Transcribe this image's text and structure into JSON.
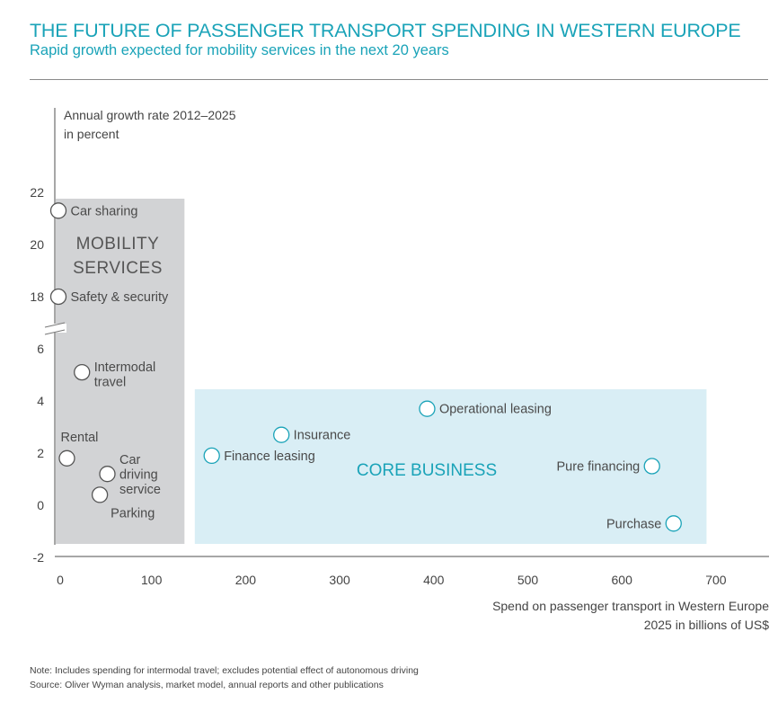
{
  "header": {
    "title": "THE FUTURE OF PASSENGER TRANSPORT SPENDING IN WESTERN EUROPE",
    "subtitle": "Rapid growth expected for mobility services in the next 20 years"
  },
  "footer": {
    "note": "Note: Includes spending for intermodal travel; excludes potential effect of autonomous driving",
    "source": "Source: Oliver Wyman analysis, market model, annual reports and other publications"
  },
  "colors": {
    "accent": "#1aa3b8",
    "mobility_region": "#d2d3d5",
    "core_region": "#d9eef5",
    "axis": "#8a8a8a",
    "text": "#4a4a4a"
  },
  "chart_data": {
    "type": "scatter",
    "title": "THE FUTURE OF PASSENGER TRANSPORT SPENDING IN WESTERN EUROPE",
    "subtitle": "Rapid growth expected for mobility services in the next 20 years",
    "ylabel_lines": [
      "Annual growth rate 2012–2025",
      "in percent"
    ],
    "xlabel_lines": [
      "Spend on passenger transport in Western Europe",
      "2025 in billions of US$"
    ],
    "xlim": [
      0,
      750
    ],
    "x_ticks": [
      0,
      100,
      200,
      300,
      400,
      500,
      600,
      700
    ],
    "y_ticks_lower": [
      -2,
      0,
      2,
      4,
      6
    ],
    "y_ticks_upper": [
      18,
      20,
      22
    ],
    "y_axis_break": "between 6 and 18",
    "grid": false,
    "regions": [
      {
        "name": "MOBILITY SERVICES",
        "label_lines": [
          "MOBILITY",
          "SERVICES"
        ],
        "x_range": [
          0,
          135
        ],
        "y_range": [
          -1.5,
          21.8
        ]
      },
      {
        "name": "CORE BUSINESS",
        "label_lines": [
          "CORE BUSINESS"
        ],
        "x_range": [
          145,
          690
        ],
        "y_range": [
          -1.5,
          4.4
        ]
      }
    ],
    "points": [
      {
        "label_lines": [
          "Car sharing"
        ],
        "x": 0,
        "y": 21.3,
        "group": "mobility",
        "label_pos": "right"
      },
      {
        "label_lines": [
          "Safety & security"
        ],
        "x": 0,
        "y": 18.0,
        "group": "mobility",
        "label_pos": "right"
      },
      {
        "label_lines": [
          "Intermodal",
          "travel"
        ],
        "x": 26,
        "y": 5.1,
        "group": "mobility",
        "label_pos": "right"
      },
      {
        "label_lines": [
          "Rental"
        ],
        "x": 10,
        "y": 1.8,
        "group": "mobility",
        "label_pos": "above"
      },
      {
        "label_lines": [
          "Car",
          "driving",
          "service"
        ],
        "x": 53,
        "y": 1.2,
        "group": "mobility",
        "label_pos": "right"
      },
      {
        "label_lines": [
          "Parking"
        ],
        "x": 45,
        "y": 0.4,
        "group": "mobility",
        "label_pos": "below-right"
      },
      {
        "label_lines": [
          "Finance leasing"
        ],
        "x": 164,
        "y": 1.9,
        "group": "core",
        "label_pos": "right"
      },
      {
        "label_lines": [
          "Insurance"
        ],
        "x": 238,
        "y": 2.7,
        "group": "core",
        "label_pos": "right"
      },
      {
        "label_lines": [
          "Operational leasing"
        ],
        "x": 393,
        "y": 3.7,
        "group": "core",
        "label_pos": "right"
      },
      {
        "label_lines": [
          "Pure financing"
        ],
        "x": 632,
        "y": 1.5,
        "group": "core",
        "label_pos": "left"
      },
      {
        "label_lines": [
          "Purchase"
        ],
        "x": 655,
        "y": -0.7,
        "group": "core",
        "label_pos": "left"
      }
    ]
  }
}
